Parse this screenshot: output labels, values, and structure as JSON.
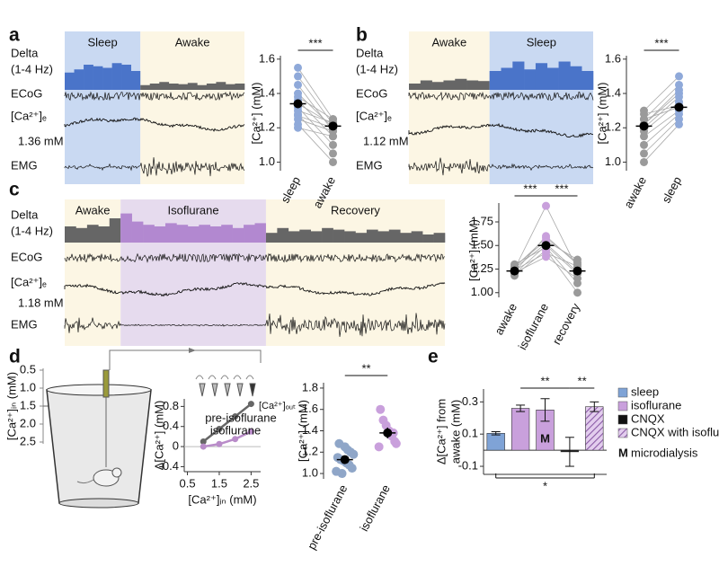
{
  "panel_labels": [
    "a",
    "b",
    "c",
    "d",
    "e"
  ],
  "traces": [
    {
      "labels": {
        "delta": "Delta",
        "band": "(1-4 Hz)",
        "ecog": "ECoG",
        "ca": "[Ca²⁺]ₑ",
        "baseline": "1.36 mM",
        "emg": "EMG"
      },
      "states": [
        {
          "name": "Sleep",
          "bg": "#c9d9f2",
          "bar": "#4a74c9",
          "delta": [
            0.55,
            0.65,
            0.8,
            0.75,
            0.7,
            0.85,
            0.8,
            0.6
          ]
        },
        {
          "name": "Awake",
          "bg": "#fcf6e4",
          "bar": "#666666",
          "delta": [
            0.15,
            0.2,
            0.25,
            0.2,
            0.18,
            0.22,
            0.15,
            0.2,
            0.25,
            0.18,
            0.2
          ]
        }
      ]
    },
    {
      "labels": {
        "delta": "Delta",
        "band": "(1-4 Hz)",
        "ecog": "ECoG",
        "ca": "[Ca²⁺]ₑ",
        "baseline": "1.12 mM",
        "emg": "EMG"
      },
      "states": [
        {
          "name": "Awake",
          "bg": "#fcf6e4",
          "bar": "#666666",
          "delta": [
            0.2,
            0.3,
            0.25,
            0.3,
            0.35,
            0.3,
            0.28
          ]
        },
        {
          "name": "Sleep",
          "bg": "#c9d9f2",
          "bar": "#4a74c9",
          "delta": [
            0.6,
            0.7,
            0.9,
            0.65,
            0.85,
            0.7,
            0.9,
            0.75,
            0.6
          ]
        }
      ]
    },
    {
      "labels": {
        "delta": "Delta",
        "band": "(1-4 Hz)",
        "ecog": "ECoG",
        "ca": "[Ca²⁺]ₑ",
        "baseline": "1.18 mM",
        "emg": "EMG"
      },
      "states": [
        {
          "name": "Awake",
          "bg": "#fcf6e4",
          "bar": "#666666",
          "delta": [
            0.5,
            0.45,
            0.55,
            0.5,
            0.75
          ]
        },
        {
          "name": "Isoflurane",
          "bg": "#e6dbee",
          "bar": "#b288d0",
          "delta": [
            0.9,
            0.65,
            0.55,
            0.5,
            0.6,
            0.55,
            0.5,
            0.55,
            0.5,
            0.55,
            0.45,
            0.55,
            0.6
          ]
        },
        {
          "name": "Recovery",
          "bg": "#fcf6e4",
          "bar": "#666666",
          "delta": [
            0.3,
            0.45,
            0.35,
            0.4,
            0.35,
            0.45,
            0.4,
            0.35,
            0.3,
            0.4,
            0.35,
            0.4,
            0.3,
            0.35,
            0.25,
            0.3
          ]
        }
      ]
    }
  ],
  "diagram": {
    "scale_title": "[Ca²⁺]ᵢₙ (mM)",
    "scale": [
      "0.5",
      "1.0",
      "1.5",
      "2.0",
      "2.5"
    ],
    "out_label": "[Ca²⁺]ₒᵤₜ"
  },
  "chart_data": [
    {
      "type": "paired",
      "ylabel": "[Ca²⁺] (mM)",
      "categories": [
        "sleep",
        "awake"
      ],
      "colors": [
        "#8fa9d9",
        "#9a9a9a"
      ],
      "points": [
        [
          1.55,
          1.25
        ],
        [
          1.5,
          1.22
        ],
        [
          1.45,
          1.18
        ],
        [
          1.4,
          1.2
        ],
        [
          1.38,
          1.25
        ],
        [
          1.36,
          1.15
        ],
        [
          1.34,
          1.22
        ],
        [
          1.32,
          1.1
        ],
        [
          1.3,
          1.23
        ],
        [
          1.28,
          1.05
        ],
        [
          1.27,
          1.2
        ],
        [
          1.25,
          1.18
        ],
        [
          1.22,
          1.0
        ],
        [
          1.2,
          1.15
        ]
      ],
      "mean": [
        1.34,
        1.21
      ],
      "sem": [
        0.025,
        0.02
      ],
      "annotations": [
        "***"
      ],
      "ylim": [
        0.95,
        1.62
      ],
      "yticks": [
        {
          "value": 1.0,
          "label": "1.0"
        },
        1.2,
        1.4,
        1.6
      ]
    },
    {
      "type": "paired",
      "ylabel": "[Ca²⁺] (mM)",
      "categories": [
        "awake",
        "sleep"
      ],
      "colors": [
        "#9a9a9a",
        "#8fa9d9"
      ],
      "points": [
        [
          1.3,
          1.5
        ],
        [
          1.25,
          1.45
        ],
        [
          1.22,
          1.4
        ],
        [
          1.2,
          1.38
        ],
        [
          1.18,
          1.35
        ],
        [
          1.15,
          1.3
        ],
        [
          1.25,
          1.32
        ],
        [
          1.1,
          1.28
        ],
        [
          1.05,
          1.25
        ],
        [
          1.0,
          1.22
        ],
        [
          1.22,
          1.42
        ],
        [
          1.28,
          1.33
        ]
      ],
      "mean": [
        1.21,
        1.32
      ],
      "sem": [
        0.02,
        0.02
      ],
      "annotations": [
        "***"
      ],
      "ylim": [
        0.95,
        1.62
      ],
      "yticks": [
        {
          "value": 1.0,
          "label": "1.0"
        },
        1.2,
        1.4,
        1.6
      ]
    },
    {
      "type": "paired",
      "ylabel": "[Ca²⁺] (mM)",
      "categories": [
        "awake",
        "isoflurane",
        "recovery"
      ],
      "colors": [
        "#9a9a9a",
        "#c9a0dc",
        "#9a9a9a"
      ],
      "points": [
        [
          1.25,
          1.92,
          1.25
        ],
        [
          1.22,
          1.6,
          1.3
        ],
        [
          1.28,
          1.55,
          1.35
        ],
        [
          1.2,
          1.5,
          1.2
        ],
        [
          1.3,
          1.48,
          1.1
        ],
        [
          1.18,
          1.45,
          1.0
        ],
        [
          1.24,
          1.42,
          1.28
        ],
        [
          1.26,
          1.52,
          1.22
        ],
        [
          1.21,
          1.38,
          1.15
        ],
        [
          1.27,
          1.58,
          1.32
        ]
      ],
      "mean": [
        1.23,
        1.5,
        1.23
      ],
      "sem": [
        0.02,
        0.04,
        0.03
      ],
      "annotations": [
        "***",
        "***"
      ],
      "ylim": [
        0.95,
        1.95
      ],
      "yticks": [
        {
          "value": 1.0,
          "label": "1.00"
        },
        1.25,
        {
          "value": 1.5,
          "label": "1.50"
        },
        1.75
      ]
    },
    {
      "type": "line",
      "ylabel": "Δ[Ca²⁺] (mM)",
      "xlabel": "[Ca²⁺]ᵢₙ (mM)",
      "series": [
        {
          "name": "pre-isoflurane",
          "color": "#666666",
          "x": [
            1.0,
            1.5,
            2.0,
            2.5
          ],
          "values": [
            0.1,
            0.35,
            0.6,
            0.85
          ]
        },
        {
          "name": "isoflurane",
          "color": "#b98cc9",
          "x": [
            1.0,
            1.5,
            2.0,
            2.5
          ],
          "values": [
            0.0,
            0.05,
            0.15,
            0.3
          ]
        }
      ],
      "xlim": [
        0.4,
        2.8
      ],
      "xticks": [
        0.5,
        1.5,
        2.5
      ],
      "ylim": [
        -0.5,
        0.95
      ],
      "yticks": [
        -0.4,
        0,
        0.4,
        0.8
      ]
    },
    {
      "type": "strip",
      "ylabel": "[Ca²⁺] (mM)",
      "categories": [
        "pre-isoflurane",
        "isoflurane"
      ],
      "colors": [
        "#8fa6c8",
        "#c9a0dc"
      ],
      "points": [
        [
          1.02,
          1.05,
          1.08,
          1.1,
          1.12,
          1.13,
          1.15,
          1.18,
          1.2,
          1.22,
          1.25,
          1.0,
          1.28
        ],
        [
          1.25,
          1.3,
          1.35,
          1.4,
          1.45,
          1.5,
          1.6,
          1.28,
          1.38
        ]
      ],
      "mean": [
        1.13,
        1.38
      ],
      "sem": [
        0.03,
        0.05
      ],
      "annotations": [
        "**"
      ],
      "ylim": [
        0.95,
        1.85
      ],
      "yticks": [
        {
          "value": 1.0,
          "label": "1.0"
        },
        1.2,
        1.4,
        1.6,
        1.8
      ]
    },
    {
      "type": "bar",
      "ylabel": [
        "Δ[Ca²⁺] from",
        "awake (mM)"
      ],
      "categories": [
        null,
        null,
        null,
        null,
        null
      ],
      "values": [
        0.105,
        0.26,
        0.25,
        -0.01,
        0.27
      ],
      "errors": [
        0.01,
        0.02,
        0.07,
        0.09,
        0.03
      ],
      "colors": [
        "#7fa3d6",
        "#c9a0dc",
        "#c9a0dc",
        "#111111",
        "#b98cc9"
      ],
      "hatched": [
        false,
        false,
        false,
        false,
        true
      ],
      "bar_labels": [
        null,
        null,
        "M",
        null,
        null
      ],
      "annotations": [
        "**",
        "**",
        "*"
      ],
      "legend": [
        {
          "name": "sleep",
          "color": "#7fa3d6"
        },
        {
          "name": "isoflurane",
          "color": "#c9a0dc"
        },
        {
          "name": "CNQX",
          "color": "#111111"
        },
        {
          "name": "CNQX with isoflurane",
          "color": "#b98cc9",
          "hatched": true
        }
      ],
      "legend_note": {
        "mark": "M",
        "text": "microdialysis"
      },
      "ylim": [
        -0.15,
        0.38
      ],
      "yticks": [
        -0.1,
        0.1,
        0.3
      ]
    }
  ]
}
